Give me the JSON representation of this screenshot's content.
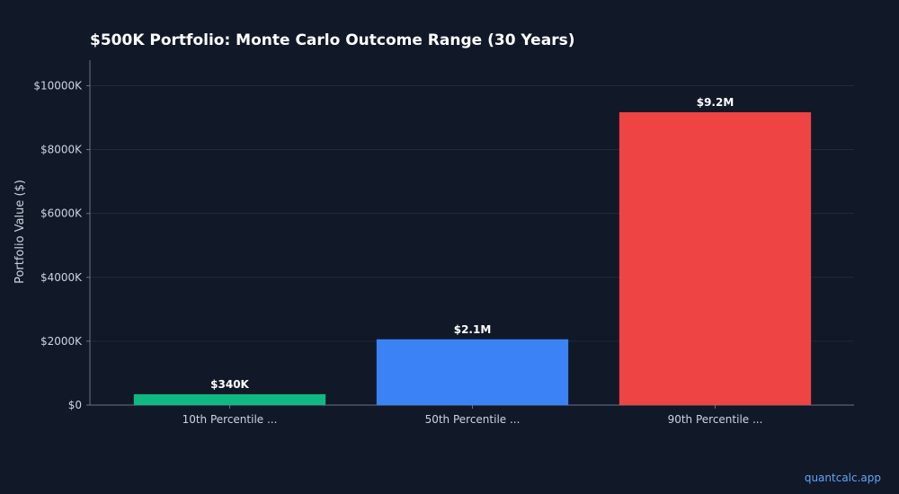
{
  "chart_data": {
    "type": "bar",
    "title": "$500K Portfolio: Monte Carlo Outcome Range (30 Years)",
    "xlabel": "",
    "ylabel": "Portfolio Value ($)",
    "categories": [
      "10th Percentile ...",
      "50th Percentile ...",
      "90th Percentile ..."
    ],
    "values": [
      340000,
      2060000,
      9170000
    ],
    "data_labels": [
      "$340K",
      "$2.1M",
      "$9.2M"
    ],
    "bar_colors": [
      "#10b981",
      "#3b82f6",
      "#ef4444"
    ],
    "ylim": [
      0,
      10800000
    ],
    "yticks": [
      0,
      2000000,
      4000000,
      6000000,
      8000000,
      10000000
    ],
    "ytick_labels": [
      "$0",
      "$2000K",
      "$4000K",
      "$6000K",
      "$8000K",
      "$10000K"
    ],
    "grid": true,
    "legend": "none"
  },
  "colors": {
    "background": "#111827",
    "grid": "#1f2a3c",
    "axis": "#64748b",
    "text": "#cbd5e1",
    "title": "#ffffff",
    "watermark": "#60a5fa"
  },
  "watermark": "quantcalc.app"
}
